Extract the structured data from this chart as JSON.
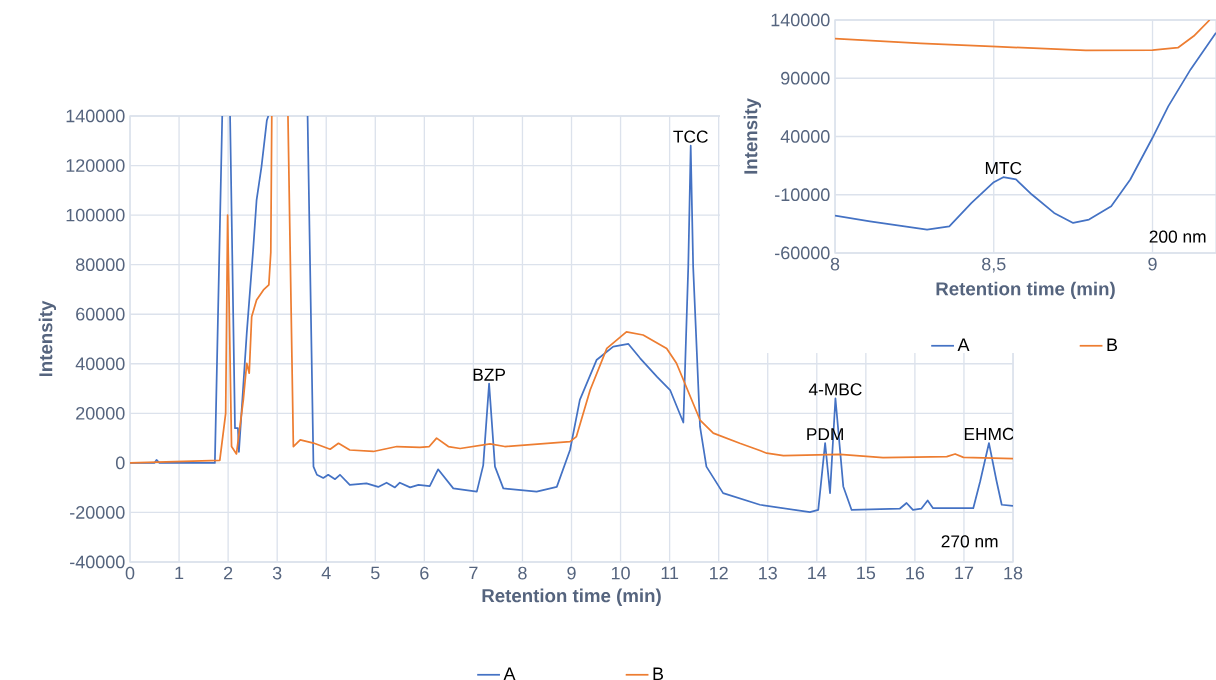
{
  "chart_data": [
    {
      "type": "line",
      "xlabel": "Retention time (min)",
      "ylabel": "Intensity",
      "xlim": [
        0,
        18
      ],
      "ylim": [
        -40000,
        140000
      ],
      "xticks": [
        0,
        1,
        2,
        3,
        4,
        5,
        6,
        7,
        8,
        9,
        10,
        11,
        12,
        13,
        14,
        15,
        16,
        17,
        18
      ],
      "yticks": [
        -40000,
        -20000,
        0,
        20000,
        40000,
        60000,
        80000,
        100000,
        120000,
        140000
      ],
      "grid": true,
      "legend": "bottom",
      "series": [
        {
          "name": "A",
          "color": "#4472c4",
          "x": [
            0,
            0.5,
            0.54,
            0.6,
            1.73,
            1.88,
            1.96,
            2.04,
            2.14,
            2.2,
            2.22,
            2.38,
            2.51,
            2.58,
            2.68,
            2.79,
            2.82,
            3.2,
            3.62,
            3.74,
            3.81,
            3.94,
            4.04,
            4.18,
            4.28,
            4.48,
            4.82,
            5.06,
            5.23,
            5.4,
            5.5,
            5.71,
            5.88,
            6.11,
            6.28,
            6.59,
            7.07,
            7.2,
            7.32,
            7.44,
            7.61,
            8.29,
            8.7,
            8.97,
            9.17,
            9.51,
            9.85,
            10.16,
            10.4,
            10.74,
            11.01,
            11.28,
            11.38,
            11.43,
            11.48,
            11.62,
            11.75,
            12.09,
            12.84,
            13.86,
            14.03,
            14.17,
            14.27,
            14.38,
            14.54,
            14.71,
            15.69,
            15.83,
            15.96,
            16.13,
            16.26,
            16.37,
            17.19,
            17.33,
            17.51,
            17.66,
            17.77,
            18
          ],
          "values": [
            0,
            0,
            1200,
            0,
            0,
            140000,
            null,
            140000,
            14000,
            14000,
            4400,
            52400,
            85900,
            106000,
            119500,
            138300,
            140000,
            null,
            140000,
            -1500,
            -4800,
            -6100,
            -4800,
            -6600,
            -4800,
            -8900,
            -8300,
            -9700,
            -8000,
            -9900,
            -8000,
            -9900,
            -8900,
            -9400,
            -2600,
            -10300,
            -11600,
            -1000,
            32000,
            -1500,
            -10300,
            -11600,
            -9700,
            5200,
            25400,
            41500,
            46900,
            48000,
            42200,
            34800,
            29400,
            16300,
            79100,
            128000,
            79100,
            14600,
            -1500,
            -12200,
            -16900,
            -19900,
            -19000,
            8000,
            -12200,
            26000,
            -9500,
            -19000,
            -18500,
            -16200,
            -19000,
            -18500,
            -15200,
            -18300,
            -18300,
            -7500,
            8000,
            -6900,
            -16900,
            -17400
          ]
        },
        {
          "name": "B",
          "color": "#ed7d31",
          "x": [
            0,
            1.83,
            1.95,
            1.99,
            2.07,
            2.17,
            2.31,
            2.38,
            2.43,
            2.48,
            2.58,
            2.72,
            2.83,
            2.87,
            2.89,
            3.05,
            3.22,
            3.33,
            3.47,
            3.74,
            4.08,
            4.25,
            4.48,
            4.96,
            5.44,
            5.91,
            6.1,
            6.25,
            6.49,
            6.73,
            7.34,
            7.64,
            8.97,
            9.1,
            9.38,
            9.72,
            10.12,
            10.46,
            10.94,
            11.14,
            11.62,
            11.89,
            12.43,
            12.84,
            12.98,
            13.32,
            14.47,
            15.35,
            16.65,
            16.82,
            16.99,
            18
          ],
          "values": [
            0,
            1000,
            20000,
            100000,
            6600,
            3600,
            25400,
            40200,
            36200,
            59000,
            65700,
            69800,
            71800,
            85000,
            140000,
            null,
            140000,
            6600,
            9300,
            8000,
            5500,
            7900,
            5200,
            4600,
            6600,
            6300,
            6600,
            10000,
            6600,
            5800,
            7700,
            6600,
            8600,
            10600,
            29400,
            46200,
            52900,
            51600,
            46200,
            40200,
            17300,
            12000,
            7900,
            5000,
            3900,
            2900,
            3400,
            2100,
            2500,
            3600,
            2200,
            1700
          ]
        }
      ],
      "annotations": [
        {
          "text": "BZP",
          "x": 7.32,
          "y": 32000
        },
        {
          "text": "TCC",
          "x": 11.43,
          "y": 128000
        },
        {
          "text": "PDM",
          "x": 14.17,
          "y": 8000
        },
        {
          "text": "4-MBC",
          "x": 14.38,
          "y": 26000
        },
        {
          "text": "EHMC",
          "x": 17.51,
          "y": 8000
        },
        "270 nm"
      ]
    },
    {
      "type": "line",
      "xlabel": "Retention time (min)",
      "ylabel": "Intensity",
      "xlim": [
        8,
        9.2
      ],
      "ylim": [
        -60000,
        140000
      ],
      "xticks": [
        8,
        {
          "value": 8.5,
          "label": "8,5"
        },
        9
      ],
      "yticks": [
        -60000,
        -10000,
        40000,
        90000,
        140000
      ],
      "grid": true,
      "legend": "bottom",
      "series": [
        {
          "name": "A",
          "color": "#4472c4",
          "x": [
            8.0,
            8.11,
            8.29,
            8.36,
            8.43,
            8.5,
            8.53,
            8.57,
            8.62,
            8.69,
            8.75,
            8.8,
            8.87,
            8.93,
            9.0,
            9.05,
            9.12,
            9.2
          ],
          "values": [
            -27900,
            -32800,
            -39900,
            -37100,
            -17000,
            800,
            5100,
            3100,
            -9800,
            -25600,
            -34200,
            -31300,
            -19900,
            3100,
            38900,
            66100,
            97600,
            129100
          ]
        },
        {
          "name": "B",
          "color": "#ed7d31",
          "x": [
            8.0,
            8.27,
            8.51,
            8.79,
            9.0,
            9.08,
            9.13,
            9.18
          ],
          "values": [
            124000,
            119900,
            117100,
            113900,
            114200,
            116200,
            126200,
            140000
          ]
        }
      ],
      "annotations": [
        {
          "text": "MTC",
          "x": 8.53,
          "y": 5100
        },
        "200 nm"
      ]
    }
  ]
}
